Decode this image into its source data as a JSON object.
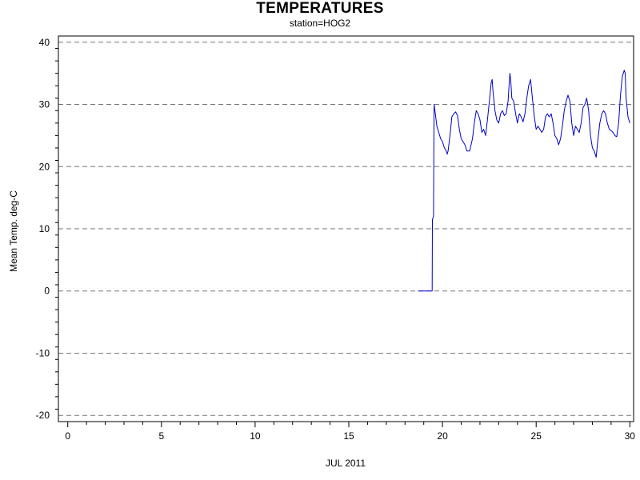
{
  "chart_data": {
    "type": "line",
    "title": "TEMPERATURES",
    "subtitle": "station=HOG2",
    "xlabel": "JUL 2011",
    "ylabel": "Mean Temp. deg-C",
    "xlim": [
      -0.5,
      30.2
    ],
    "ylim": [
      -21,
      41
    ],
    "x_ticks": [
      0,
      5,
      10,
      15,
      20,
      25,
      30
    ],
    "y_ticks": [
      -20,
      -10,
      0,
      10,
      20,
      30,
      40
    ],
    "grid": "horizontal dashed",
    "series": [
      {
        "color": "#0000cc",
        "points": [
          [
            18.7,
            0
          ],
          [
            19.45,
            0
          ],
          [
            19.46,
            11.5
          ],
          [
            19.52,
            12
          ],
          [
            19.55,
            30
          ],
          [
            19.6,
            29
          ],
          [
            19.7,
            26.5
          ],
          [
            19.8,
            25.5
          ],
          [
            19.9,
            24.5
          ],
          [
            20.0,
            24
          ],
          [
            20.1,
            23
          ],
          [
            20.2,
            22.5
          ],
          [
            20.25,
            22
          ],
          [
            20.3,
            22.5
          ],
          [
            20.4,
            25
          ],
          [
            20.5,
            28
          ],
          [
            20.6,
            28.5
          ],
          [
            20.7,
            28.8
          ],
          [
            20.8,
            28.2
          ],
          [
            20.9,
            26
          ],
          [
            21.0,
            24.5
          ],
          [
            21.1,
            24
          ],
          [
            21.2,
            23.5
          ],
          [
            21.3,
            22.5
          ],
          [
            21.45,
            22.5
          ],
          [
            21.6,
            24.5
          ],
          [
            21.7,
            27
          ],
          [
            21.8,
            29
          ],
          [
            21.9,
            28.5
          ],
          [
            22.0,
            27.5
          ],
          [
            22.1,
            25.5
          ],
          [
            22.2,
            26
          ],
          [
            22.3,
            25
          ],
          [
            22.4,
            27.5
          ],
          [
            22.5,
            30.5
          ],
          [
            22.6,
            33.5
          ],
          [
            22.65,
            34
          ],
          [
            22.7,
            32
          ],
          [
            22.8,
            29
          ],
          [
            22.9,
            27.5
          ],
          [
            23.0,
            27
          ],
          [
            23.1,
            28.5
          ],
          [
            23.2,
            29
          ],
          [
            23.3,
            28.2
          ],
          [
            23.4,
            28.5
          ],
          [
            23.5,
            30.5
          ],
          [
            23.55,
            33
          ],
          [
            23.6,
            35
          ],
          [
            23.65,
            33.5
          ],
          [
            23.7,
            31
          ],
          [
            23.8,
            30.5
          ],
          [
            23.9,
            28.5
          ],
          [
            24.0,
            27
          ],
          [
            24.1,
            28.5
          ],
          [
            24.2,
            28
          ],
          [
            24.3,
            27.2
          ],
          [
            24.4,
            28.5
          ],
          [
            24.5,
            31
          ],
          [
            24.6,
            33
          ],
          [
            24.7,
            34
          ],
          [
            24.8,
            31
          ],
          [
            24.9,
            28
          ],
          [
            25.0,
            26
          ],
          [
            25.1,
            26.5
          ],
          [
            25.2,
            26
          ],
          [
            25.3,
            25.5
          ],
          [
            25.4,
            26
          ],
          [
            25.5,
            28
          ],
          [
            25.6,
            28.5
          ],
          [
            25.7,
            28
          ],
          [
            25.8,
            28.5
          ],
          [
            25.9,
            27
          ],
          [
            26.0,
            25
          ],
          [
            26.1,
            24.5
          ],
          [
            26.2,
            23.5
          ],
          [
            26.3,
            24.5
          ],
          [
            26.4,
            26.5
          ],
          [
            26.5,
            29
          ],
          [
            26.6,
            30.5
          ],
          [
            26.7,
            31.5
          ],
          [
            26.8,
            30.5
          ],
          [
            26.9,
            27
          ],
          [
            27.0,
            25
          ],
          [
            27.1,
            26.5
          ],
          [
            27.2,
            26
          ],
          [
            27.3,
            25.5
          ],
          [
            27.4,
            27
          ],
          [
            27.5,
            29.5
          ],
          [
            27.6,
            30
          ],
          [
            27.7,
            31
          ],
          [
            27.8,
            29
          ],
          [
            27.9,
            25
          ],
          [
            28.0,
            23
          ],
          [
            28.1,
            22.5
          ],
          [
            28.2,
            21.5
          ],
          [
            28.3,
            24.5
          ],
          [
            28.4,
            27
          ],
          [
            28.5,
            28.5
          ],
          [
            28.6,
            29
          ],
          [
            28.7,
            28.5
          ],
          [
            28.8,
            27
          ],
          [
            28.9,
            26
          ],
          [
            29.0,
            25.8
          ],
          [
            29.1,
            25.5
          ],
          [
            29.2,
            25
          ],
          [
            29.3,
            24.8
          ],
          [
            29.4,
            27
          ],
          [
            29.5,
            31.5
          ],
          [
            29.6,
            34.5
          ],
          [
            29.7,
            35.5
          ],
          [
            29.75,
            35
          ],
          [
            29.8,
            31
          ],
          [
            29.9,
            28
          ],
          [
            30.0,
            27
          ]
        ]
      }
    ]
  }
}
